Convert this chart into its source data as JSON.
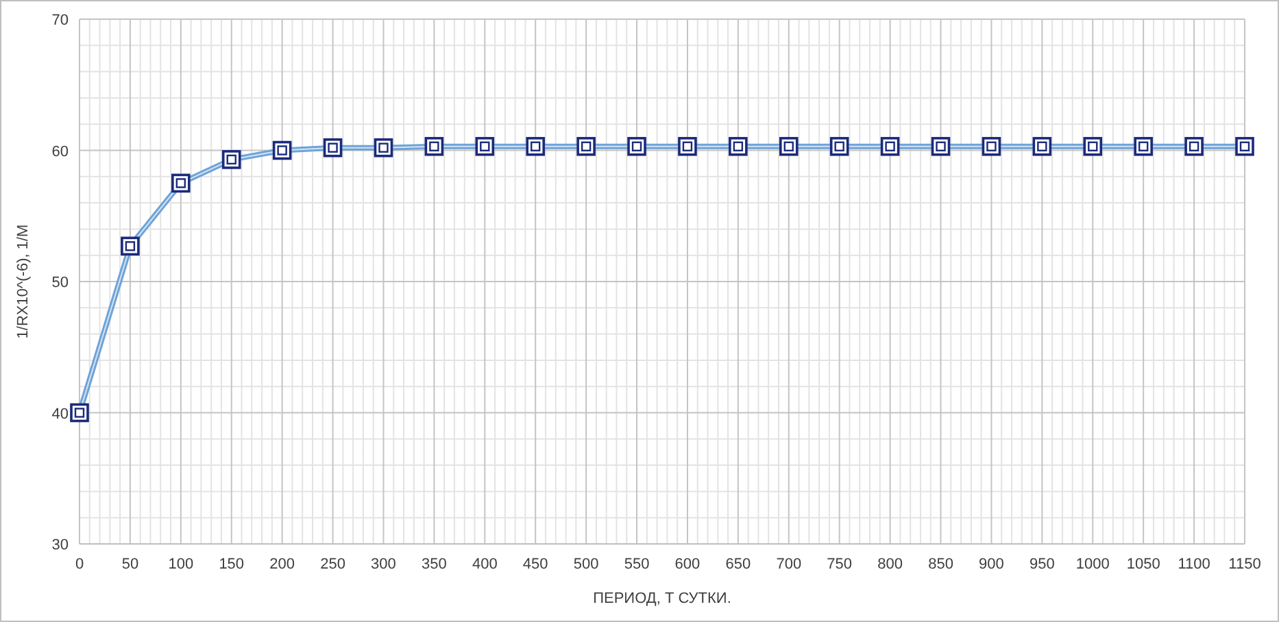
{
  "chart_data": {
    "type": "line",
    "xlabel": "ПЕРИОД, Т СУТКИ.",
    "ylabel": "1/RX10^(-6), 1/M",
    "x": [
      0,
      50,
      100,
      150,
      200,
      250,
      300,
      350,
      400,
      450,
      500,
      550,
      600,
      650,
      700,
      750,
      800,
      850,
      900,
      950,
      1000,
      1050,
      1100,
      1150
    ],
    "series": [
      {
        "color": "#6fa3d8",
        "values": [
          40,
          52.7,
          57.5,
          59.3,
          60,
          60.2,
          60.2,
          60.3,
          60.3,
          60.3,
          60.3,
          60.3,
          60.3,
          60.3,
          60.3,
          60.3,
          60.3,
          60.3,
          60.3,
          60.3,
          60.3,
          60.3,
          60.3,
          60.3
        ]
      }
    ],
    "xlim": [
      0,
      1150
    ],
    "xticks": [
      0,
      50,
      100,
      150,
      200,
      250,
      300,
      350,
      400,
      450,
      500,
      550,
      600,
      650,
      700,
      750,
      800,
      850,
      900,
      950,
      1000,
      1050,
      1100,
      1150
    ],
    "ylim": [
      30,
      70
    ],
    "yticks": [
      30,
      40,
      50,
      60,
      70
    ],
    "grid": true,
    "marker": "square",
    "line_style": "solid"
  }
}
